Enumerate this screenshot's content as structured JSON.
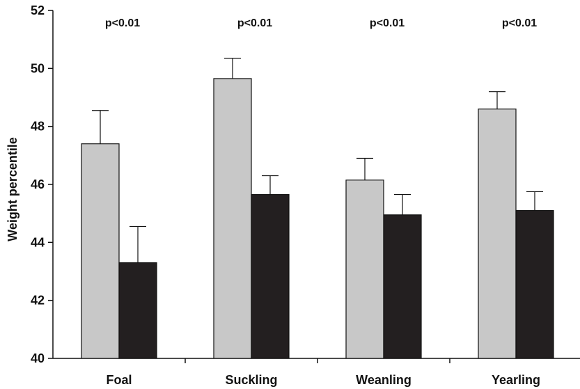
{
  "chart_data": {
    "type": "bar",
    "categories": [
      "Foal",
      "Suckling",
      "Weanling",
      "Yearling"
    ],
    "series": [
      {
        "color": "#c8c8c8",
        "values": [
          47.4,
          49.65,
          46.15,
          48.6
        ],
        "error_plus": [
          1.15,
          0.7,
          0.75,
          0.6
        ]
      },
      {
        "color": "#231f20",
        "values": [
          43.3,
          45.65,
          44.95,
          45.1
        ],
        "error_plus": [
          1.25,
          0.65,
          0.7,
          0.65
        ]
      }
    ],
    "annotations": [
      "p<0.01",
      "p<0.01",
      "p<0.01",
      "p<0.01"
    ],
    "title": "",
    "xlabel": "",
    "ylabel": "Weight percentile",
    "ylim": [
      40,
      52
    ],
    "yticks": [
      "40",
      "42",
      "44",
      "46",
      "48",
      "50",
      "52"
    ],
    "grid": false,
    "legend": "none"
  }
}
